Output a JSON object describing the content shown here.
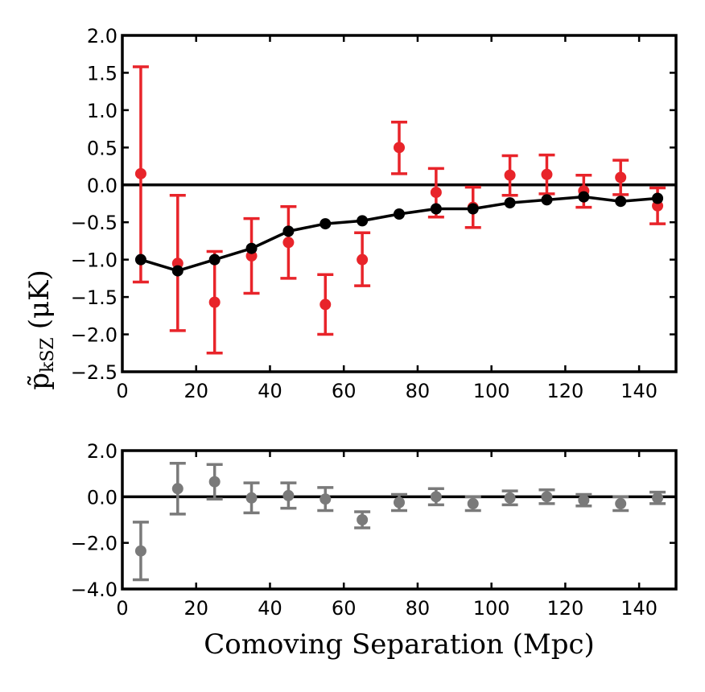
{
  "chart_data": [
    {
      "type": "scatter",
      "panel": "top",
      "xlim": [
        0,
        150
      ],
      "ylim": [
        -2.5,
        2.0
      ],
      "xticks": [
        0,
        20,
        40,
        60,
        80,
        100,
        120,
        140
      ],
      "yticks": [
        2.0,
        1.5,
        1.0,
        0.5,
        0.0,
        -0.5,
        -1.0,
        -1.5,
        -2.0,
        -2.5
      ],
      "xtick_labels": [
        "0",
        "20",
        "40",
        "60",
        "80",
        "100",
        "120",
        "140"
      ],
      "ytick_labels": [
        "2.0",
        "1.5",
        "1.0",
        "0.5",
        "0.0",
        "−0.5",
        "−1.0",
        "−1.5",
        "−2.0",
        "−2.5"
      ],
      "hline": 0,
      "series": [
        {
          "style": "errorbar",
          "color": "#e8242a",
          "x": [
            5,
            15,
            25,
            35,
            45,
            55,
            65,
            75,
            85,
            95,
            105,
            115,
            125,
            135,
            145
          ],
          "y": [
            0.15,
            -1.05,
            -1.57,
            -0.95,
            -0.77,
            -1.6,
            -1.0,
            0.5,
            -0.1,
            -0.3,
            0.13,
            0.14,
            -0.08,
            0.1,
            -0.28
          ],
          "yerr_low": [
            1.45,
            0.9,
            0.68,
            0.5,
            0.48,
            0.4,
            0.35,
            0.35,
            0.33,
            0.27,
            0.27,
            0.26,
            0.22,
            0.23,
            0.24
          ],
          "yerr_high": [
            1.43,
            0.91,
            0.68,
            0.5,
            0.48,
            0.4,
            0.36,
            0.34,
            0.32,
            0.27,
            0.26,
            0.26,
            0.21,
            0.23,
            0.24
          ]
        },
        {
          "style": "line-marker",
          "color": "#000000",
          "x": [
            5,
            15,
            25,
            35,
            45,
            55,
            65,
            75,
            85,
            95,
            105,
            115,
            125,
            135,
            145
          ],
          "y": [
            -1.0,
            -1.15,
            -1.0,
            -0.85,
            -0.62,
            -0.52,
            -0.48,
            -0.39,
            -0.32,
            -0.32,
            -0.24,
            -0.2,
            -0.16,
            -0.22,
            -0.18
          ]
        }
      ]
    },
    {
      "type": "scatter",
      "panel": "bottom",
      "xlim": [
        0,
        150
      ],
      "ylim": [
        -4.0,
        2.0
      ],
      "xticks": [
        0,
        20,
        40,
        60,
        80,
        100,
        120,
        140
      ],
      "yticks": [
        2.0,
        0.0,
        -2.0,
        -4.0
      ],
      "xtick_labels": [
        "0",
        "20",
        "40",
        "60",
        "80",
        "100",
        "120",
        "140"
      ],
      "ytick_labels": [
        "2.0",
        "0.0",
        "−2.0",
        "−4.0"
      ],
      "hline": 0,
      "series": [
        {
          "style": "errorbar",
          "color": "#7a7a7a",
          "x": [
            5,
            15,
            25,
            35,
            45,
            55,
            65,
            75,
            85,
            95,
            105,
            115,
            125,
            135,
            145
          ],
          "y": [
            -2.35,
            0.35,
            0.65,
            -0.05,
            0.05,
            -0.1,
            -1.0,
            -0.25,
            0.0,
            -0.3,
            -0.05,
            0.0,
            -0.15,
            -0.3,
            -0.05
          ],
          "yerr": [
            1.25,
            1.1,
            0.75,
            0.65,
            0.55,
            0.5,
            0.35,
            0.35,
            0.35,
            0.3,
            0.3,
            0.3,
            0.25,
            0.3,
            0.25
          ]
        }
      ]
    }
  ],
  "labels": {
    "ylabel_main": "p̃",
    "ylabel_sub": "kSZ",
    "ylabel_unit": "(μK)",
    "xlabel": "Comoving Separation (Mpc)"
  }
}
